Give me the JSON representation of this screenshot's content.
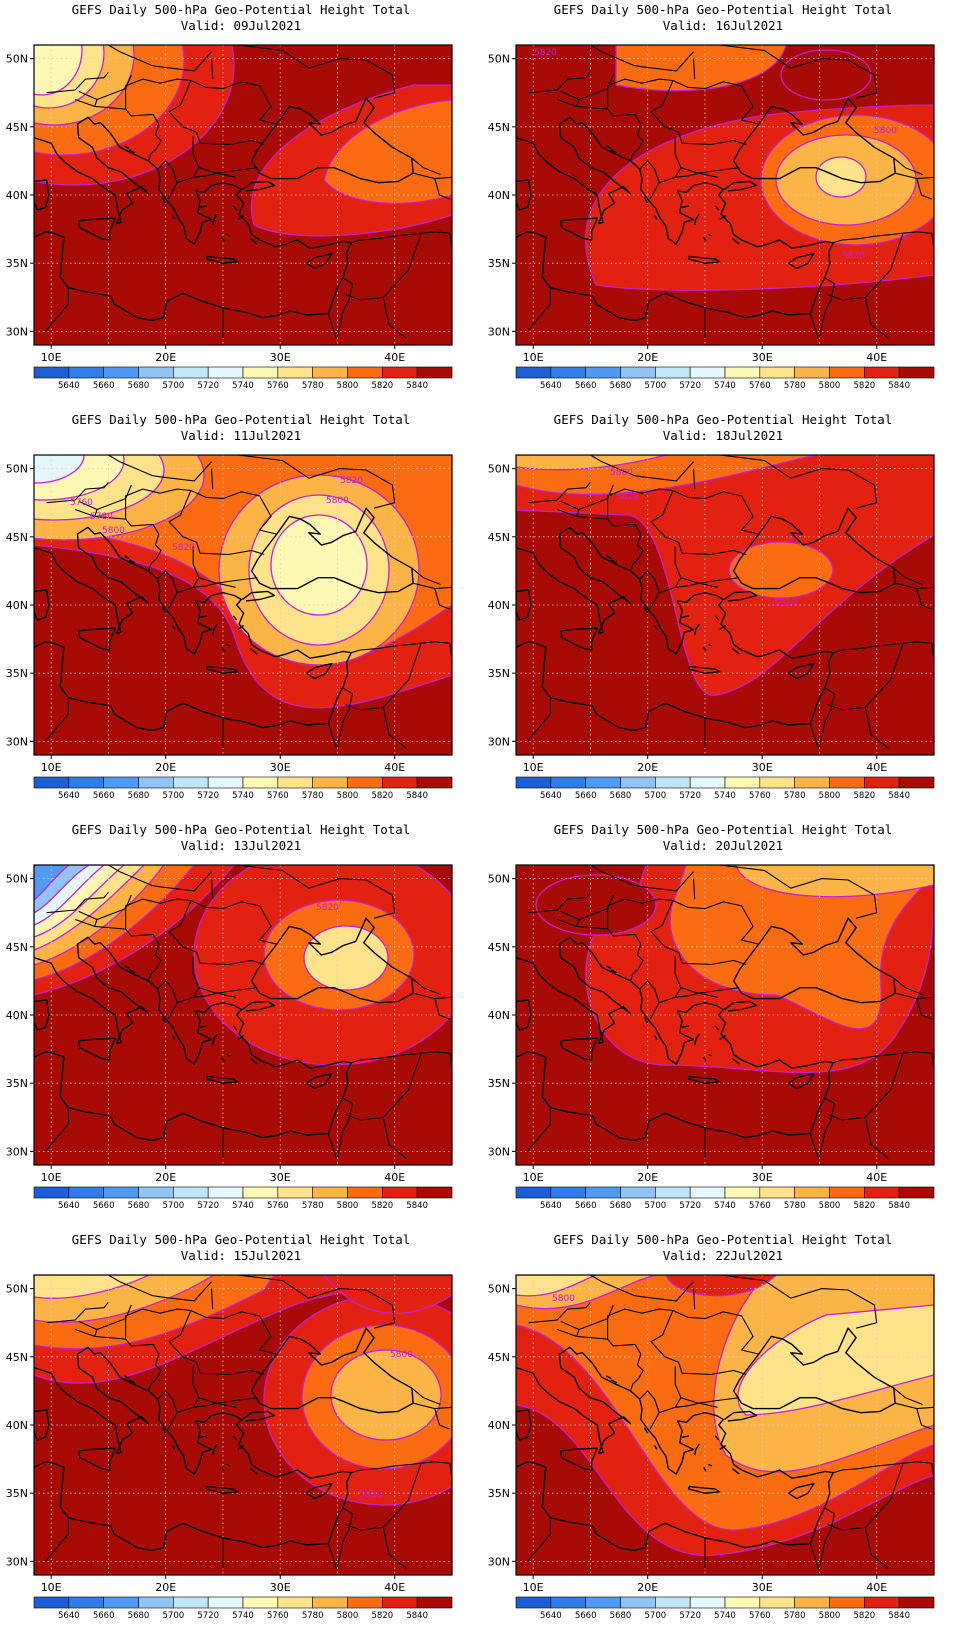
{
  "colorbar": {
    "levels": [
      "5640",
      "5660",
      "5680",
      "5700",
      "5720",
      "5740",
      "5760",
      "5780",
      "5800",
      "5820",
      "5840"
    ],
    "colors": [
      "#1c5ed4",
      "#2f7ee8",
      "#4f9bf4",
      "#8fc4f4",
      "#bfe6f8",
      "#e4f8fb",
      "#fef8b5",
      "#fee38a",
      "#fdb447",
      "#fb6b12",
      "#e32111",
      "#a80a05"
    ]
  },
  "axes": {
    "lat_labels": [
      "50N",
      "45N",
      "40N",
      "35N",
      "30N"
    ],
    "lon_labels": [
      "10E",
      "20E",
      "30E",
      "40E"
    ]
  },
  "panels": [
    {
      "title": "GEFS Daily 500-hPa Geo-Potential Height Total",
      "valid": "Valid: 09Jul2021",
      "contour_labels": []
    },
    {
      "title": "GEFS Daily 500-hPa Geo-Potential Height Total",
      "valid": "Valid: 16Jul2021",
      "contour_labels": [
        "5820",
        "5800",
        "5820"
      ]
    },
    {
      "title": "GEFS Daily 500-hPa Geo-Potential Height Total",
      "valid": "Valid: 11Jul2021",
      "contour_labels": [
        "5760",
        "5780",
        "5800",
        "5820",
        "5820",
        "5800"
      ]
    },
    {
      "title": "GEFS Daily 500-hPa Geo-Potential Height Total",
      "valid": "Valid: 18Jul2021",
      "contour_labels": [
        "5800",
        "5820",
        "5820"
      ]
    },
    {
      "title": "GEFS Daily 500-hPa Geo-Potential Height Total",
      "valid": "Valid: 13Jul2021",
      "contour_labels": [
        "5820"
      ]
    },
    {
      "title": "GEFS Daily 500-hPa Geo-Potential Height Total",
      "valid": "Valid: 20Jul2021",
      "contour_labels": []
    },
    {
      "title": "GEFS Daily 500-hPa Geo-Potential Height Total",
      "valid": "Valid: 15Jul2021",
      "contour_labels": [
        "5800",
        "5820"
      ]
    },
    {
      "title": "GEFS Daily 500-hPa Geo-Potential Height Total",
      "valid": "Valid: 22Jul2021",
      "contour_labels": [
        "5800"
      ]
    }
  ]
}
